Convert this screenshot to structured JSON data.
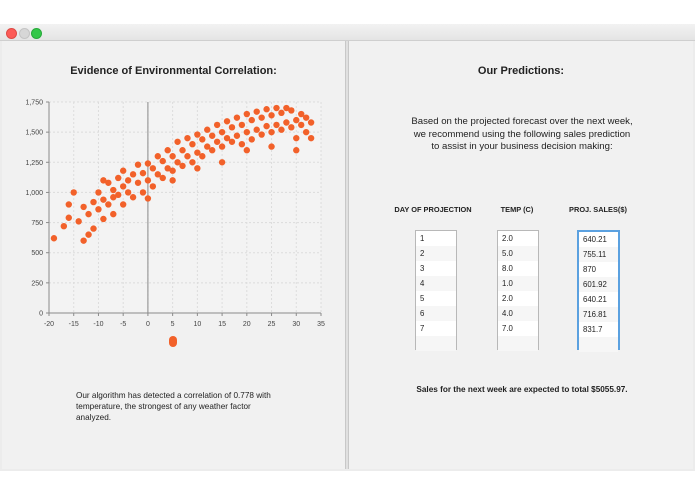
{
  "colors": {
    "accent": "#f2612a",
    "focus": "#5ba1e0"
  },
  "window": {
    "buttons": [
      "close",
      "minimize",
      "zoom"
    ]
  },
  "left": {
    "title": "Evidence of Environmental Correlation:",
    "note": "Our algorithm has detected a correlation of 0.778 with temperature, the strongest of any weather factor analyzed."
  },
  "chart_data": {
    "type": "scatter",
    "title": "",
    "xlabel": "",
    "ylabel": "",
    "xlim": [
      -20,
      35
    ],
    "ylim": [
      0,
      1750
    ],
    "xticks": [
      "-20",
      "-15",
      "-10",
      "-5",
      "0",
      "5",
      "10",
      "15",
      "20",
      "25",
      "30",
      "35"
    ],
    "yticks": [
      "0",
      "250",
      "500",
      "750",
      "1,000",
      "1,250",
      "1,500",
      "1,750"
    ],
    "grid": true,
    "legend": "bottom-center",
    "series": [
      {
        "color": "#f2612a",
        "points": [
          [
            -19,
            620
          ],
          [
            -17,
            720
          ],
          [
            -16,
            900
          ],
          [
            -16,
            790
          ],
          [
            -15,
            1000
          ],
          [
            -14,
            760
          ],
          [
            -13,
            880
          ],
          [
            -13,
            600
          ],
          [
            -12,
            650
          ],
          [
            -12,
            820
          ],
          [
            -11,
            920
          ],
          [
            -11,
            700
          ],
          [
            -10,
            1000
          ],
          [
            -10,
            860
          ],
          [
            -9,
            780
          ],
          [
            -9,
            1100
          ],
          [
            -9,
            940
          ],
          [
            -8,
            900
          ],
          [
            -8,
            1080
          ],
          [
            -7,
            960
          ],
          [
            -7,
            1020
          ],
          [
            -7,
            820
          ],
          [
            -6,
            1120
          ],
          [
            -6,
            980
          ],
          [
            -5,
            900
          ],
          [
            -5,
            1050
          ],
          [
            -5,
            1180
          ],
          [
            -4,
            1000
          ],
          [
            -4,
            1100
          ],
          [
            -3,
            960
          ],
          [
            -3,
            1150
          ],
          [
            -2,
            1080
          ],
          [
            -2,
            1230
          ],
          [
            -1,
            1000
          ],
          [
            -1,
            1160
          ],
          [
            0,
            1100
          ],
          [
            0,
            1240
          ],
          [
            1,
            1050
          ],
          [
            1,
            1200
          ],
          [
            2,
            1150
          ],
          [
            2,
            1300
          ],
          [
            3,
            1120
          ],
          [
            3,
            1260
          ],
          [
            4,
            1200
          ],
          [
            4,
            1350
          ],
          [
            5,
            1180
          ],
          [
            5,
            1300
          ],
          [
            6,
            1250
          ],
          [
            6,
            1420
          ],
          [
            7,
            1220
          ],
          [
            7,
            1350
          ],
          [
            8,
            1300
          ],
          [
            8,
            1450
          ],
          [
            9,
            1250
          ],
          [
            9,
            1400
          ],
          [
            10,
            1330
          ],
          [
            10,
            1480
          ],
          [
            11,
            1300
          ],
          [
            11,
            1440
          ],
          [
            12,
            1380
          ],
          [
            12,
            1520
          ],
          [
            13,
            1350
          ],
          [
            13,
            1470
          ],
          [
            14,
            1420
          ],
          [
            14,
            1560
          ],
          [
            15,
            1380
          ],
          [
            15,
            1500
          ],
          [
            16,
            1450
          ],
          [
            16,
            1590
          ],
          [
            17,
            1420
          ],
          [
            17,
            1540
          ],
          [
            18,
            1470
          ],
          [
            18,
            1620
          ],
          [
            19,
            1400
          ],
          [
            19,
            1560
          ],
          [
            20,
            1500
          ],
          [
            20,
            1650
          ],
          [
            21,
            1440
          ],
          [
            21,
            1600
          ],
          [
            22,
            1520
          ],
          [
            22,
            1670
          ],
          [
            23,
            1480
          ],
          [
            23,
            1620
          ],
          [
            24,
            1550
          ],
          [
            24,
            1690
          ],
          [
            25,
            1500
          ],
          [
            25,
            1640
          ],
          [
            26,
            1560
          ],
          [
            26,
            1700
          ],
          [
            27,
            1520
          ],
          [
            27,
            1660
          ],
          [
            28,
            1580
          ],
          [
            28,
            1700
          ],
          [
            29,
            1540
          ],
          [
            29,
            1680
          ],
          [
            30,
            1600
          ],
          [
            30,
            1450
          ],
          [
            31,
            1560
          ],
          [
            31,
            1650
          ],
          [
            32,
            1500
          ],
          [
            32,
            1620
          ],
          [
            33,
            1580
          ],
          [
            33,
            1450
          ],
          [
            0,
            950
          ],
          [
            5,
            1100
          ],
          [
            10,
            1200
          ],
          [
            15,
            1250
          ],
          [
            20,
            1350
          ],
          [
            25,
            1380
          ],
          [
            30,
            1350
          ]
        ]
      }
    ]
  },
  "right": {
    "title": "Our Predictions:",
    "intro": "Based on the projected forecast over the next week, we recommend using the following sales prediction to assist in your business decision making:",
    "headers": {
      "day": "DAY OF PROJECTION",
      "temp": "TEMP (C)",
      "sales": "PROJ. SALES($)"
    },
    "days": [
      "1",
      "2",
      "3",
      "4",
      "5",
      "6",
      "7"
    ],
    "temps": [
      "2.0",
      "5.0",
      "8.0",
      "1.0",
      "2.0",
      "4.0",
      "7.0"
    ],
    "sales": [
      "640.21",
      "755.11",
      "870",
      "601.92",
      "640.21",
      "716.81",
      "831.7"
    ],
    "summary": "Sales for the next week are expected to total $5055.97."
  }
}
